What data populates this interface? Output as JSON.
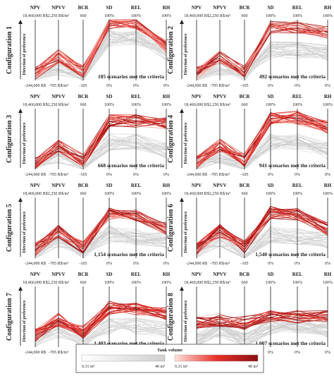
{
  "axes": [
    "NPV",
    "NPVV",
    "BCR",
    "SD",
    "REL",
    "RH"
  ],
  "top_ticks": [
    "18,460,000 R$",
    "2,250 R$/m³",
    "660",
    "100%",
    "100%",
    "100%"
  ],
  "bottom_ticks": [
    "-244,000 R$",
    "-705 R$/m³",
    "-105",
    "0%",
    "0%",
    "0%"
  ],
  "direction_label": "Direction of preference",
  "legend": {
    "title": "Tank volume",
    "grey_min": "0.31 m³",
    "grey_max": "40 m³",
    "red_min": "0.31 m³",
    "red_max": "40 m³",
    "grey_color": "#cfcfcf",
    "red_colors": [
      "#fbd3c9",
      "#e8312a",
      "#8e0f12"
    ]
  },
  "chart_data": [
    {
      "type": "parallel-coordinates",
      "title": "Configuration 1",
      "annotation": "185 scenarios met the criteria",
      "scenarios_met": 185,
      "axes": [
        "NPV",
        "NPVV",
        "BCR",
        "SD",
        "REL",
        "RH"
      ],
      "grey_profile": [
        0.08,
        0.22,
        0.08,
        0.7,
        0.7,
        0.45
      ],
      "red_profile": [
        0.12,
        0.4,
        0.15,
        0.95,
        0.95,
        0.55
      ]
    },
    {
      "type": "parallel-coordinates",
      "title": "Configuration 2",
      "annotation": "492 scenarios met the criteria",
      "scenarios_met": 492,
      "axes": [
        "NPV",
        "NPVV",
        "BCR",
        "SD",
        "REL",
        "RH"
      ],
      "grey_profile": [
        0.08,
        0.22,
        0.08,
        0.5,
        0.5,
        0.45
      ],
      "red_profile": [
        0.12,
        0.4,
        0.15,
        0.88,
        0.88,
        0.8
      ]
    },
    {
      "type": "parallel-coordinates",
      "title": "Configuration 3",
      "annotation": "668 scenarios met the criteria",
      "scenarios_met": 668,
      "axes": [
        "NPV",
        "NPVV",
        "BCR",
        "SD",
        "REL",
        "RH"
      ],
      "grey_profile": [
        0.08,
        0.22,
        0.08,
        0.45,
        0.45,
        0.3
      ],
      "red_profile": [
        0.12,
        0.4,
        0.15,
        0.8,
        0.8,
        0.75
      ]
    },
    {
      "type": "parallel-coordinates",
      "title": "Configuration 4",
      "annotation": "941 scenarios met the criteria",
      "scenarios_met": 941,
      "axes": [
        "NPV",
        "NPVV",
        "BCR",
        "SD",
        "REL",
        "RH"
      ],
      "grey_profile": [
        0.08,
        0.22,
        0.08,
        0.45,
        0.45,
        0.3
      ],
      "red_profile": [
        0.12,
        0.4,
        0.15,
        0.85,
        0.85,
        0.7
      ]
    },
    {
      "type": "parallel-coordinates",
      "title": "Configuration 5",
      "annotation": "1,154 scenarios met the criteria",
      "scenarios_met": 1154,
      "axes": [
        "NPV",
        "NPVV",
        "BCR",
        "SD",
        "REL",
        "RH"
      ],
      "grey_profile": [
        0.08,
        0.3,
        0.1,
        0.4,
        0.35,
        0.3
      ],
      "red_profile": [
        0.14,
        0.45,
        0.18,
        0.75,
        0.72,
        0.48
      ]
    },
    {
      "type": "parallel-coordinates",
      "title": "Configuration 6",
      "annotation": "1,540 scenarios met the criteria",
      "scenarios_met": 1540,
      "axes": [
        "NPV",
        "NPVV",
        "BCR",
        "SD",
        "REL",
        "RH"
      ],
      "grey_profile": [
        0.08,
        0.3,
        0.1,
        0.4,
        0.35,
        0.3
      ],
      "red_profile": [
        0.14,
        0.45,
        0.18,
        0.75,
        0.72,
        0.48
      ]
    },
    {
      "type": "parallel-coordinates",
      "title": "Configuration 7",
      "annotation": "1,403 scenarios met the criteria",
      "scenarios_met": 1403,
      "axes": [
        "NPV",
        "NPVV",
        "BCR",
        "SD",
        "REL",
        "RH"
      ],
      "grey_profile": [
        0.1,
        0.3,
        0.1,
        0.35,
        0.35,
        0.3
      ],
      "red_profile": [
        0.2,
        0.45,
        0.25,
        0.65,
        0.62,
        0.55
      ]
    },
    {
      "type": "parallel-coordinates",
      "title": "Configuration 8",
      "annotation": "1,007 scenarios met the criteria",
      "scenarios_met": 1007,
      "axes": [
        "NPV",
        "NPVV",
        "BCR",
        "SD",
        "REL",
        "RH"
      ],
      "grey_profile": [
        0.1,
        0.3,
        0.1,
        0.35,
        0.35,
        0.3
      ],
      "red_profile": [
        0.4,
        0.45,
        0.4,
        0.5,
        0.5,
        0.5
      ]
    }
  ]
}
